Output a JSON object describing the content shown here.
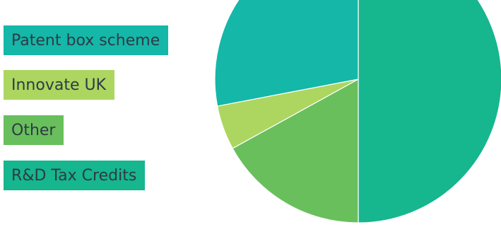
{
  "chart_data": {
    "type": "pie",
    "title": "",
    "legend_position": "left",
    "slices": [
      {
        "label": "R&D Tax Credits",
        "value": 50.0,
        "color": "#16b68f"
      },
      {
        "label": "Other",
        "value": 17.0,
        "color": "#69bf5c"
      },
      {
        "label": "Innovate UK",
        "value": 5.0,
        "color": "#acd65f"
      },
      {
        "label": "Patent box scheme",
        "value": 28.0,
        "color": "#15b7a8"
      }
    ],
    "legend": [
      {
        "label": "Patent box scheme",
        "color": "#15b7a8"
      },
      {
        "label": "Innovate UK",
        "color": "#acd65f"
      },
      {
        "label": "Other",
        "color": "#69bf5c"
      },
      {
        "label": "R&D Tax Credits",
        "color": "#16b68f"
      }
    ]
  }
}
